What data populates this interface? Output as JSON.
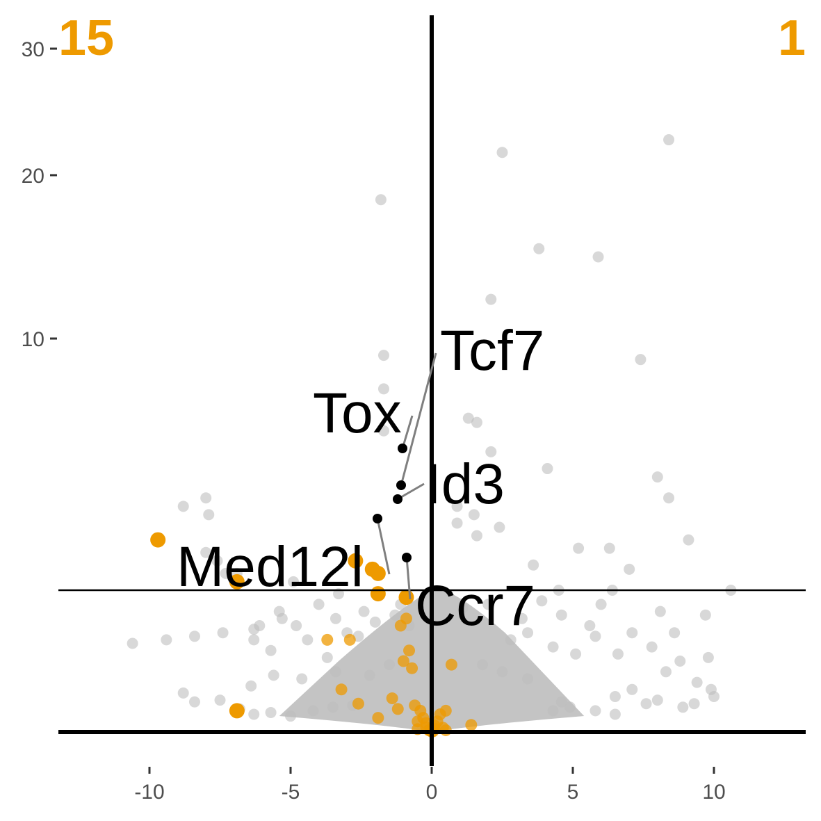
{
  "colors": {
    "background_points": "#bebebe",
    "highlight_points": "#ee9a00",
    "labeled_points": "#000000",
    "count_text": "#ee9a00",
    "axis": "#000000",
    "tick_text": "#4d4d4d",
    "connector": "#7f7f7f"
  },
  "chart_data": {
    "type": "scatter",
    "title": "",
    "xlabel": "",
    "ylabel": "",
    "grid": false,
    "x_ticks": [
      -10,
      -5,
      0,
      5,
      10
    ],
    "x_tick_labels": [
      "-10",
      "-5",
      "0",
      "5",
      "10"
    ],
    "y_ticks": [
      10,
      20,
      30
    ],
    "y_tick_labels": [
      "10",
      "20",
      "30"
    ],
    "xlim": [
      -13.3,
      13.3
    ],
    "y_scale": "transformed (compressed near zero)",
    "threshold_line_y": 4,
    "counts": {
      "down": "15",
      "up": "1"
    },
    "background_points": [
      [
        8.4,
        22.8
      ],
      [
        2.5,
        21.8
      ],
      [
        -1.8,
        18.5
      ],
      [
        3.8,
        15.5
      ],
      [
        5.9,
        15.0
      ],
      [
        2.1,
        12.4
      ],
      [
        7.4,
        9.5
      ],
      [
        -1.7,
        9.6
      ],
      [
        -1.7,
        8.8
      ],
      [
        1.3,
        8.1
      ],
      [
        1.6,
        8.0
      ],
      [
        2.1,
        7.3
      ],
      [
        -1.7,
        7.8
      ],
      [
        4.1,
        6.9
      ],
      [
        8.0,
        6.7
      ],
      [
        8.4,
        6.2
      ],
      [
        -8.0,
        6.2
      ],
      [
        -8.8,
        6.0
      ],
      [
        -7.9,
        5.8
      ],
      [
        0.9,
        6.0
      ],
      [
        1.5,
        5.8
      ],
      [
        0.9,
        5.6
      ],
      [
        2.4,
        5.5
      ],
      [
        1.6,
        5.3
      ],
      [
        9.1,
        5.2
      ],
      [
        5.2,
        5.0
      ],
      [
        6.3,
        5.0
      ],
      [
        -8.0,
        4.9
      ],
      [
        -7.6,
        4.7
      ],
      [
        -7.3,
        4.4
      ],
      [
        -6.9,
        4.4
      ],
      [
        3.6,
        4.6
      ],
      [
        4.5,
        4.0
      ],
      [
        7.0,
        4.5
      ],
      [
        -4.9,
        4.2
      ],
      [
        6.4,
        4.0
      ],
      [
        10.6,
        4.0
      ],
      [
        -3.3,
        3.9
      ],
      [
        4.6,
        3.3
      ],
      [
        -5.4,
        3.4
      ],
      [
        -4.0,
        3.6
      ],
      [
        -10.6,
        2.5
      ],
      [
        -9.4,
        2.6
      ],
      [
        -8.4,
        2.7
      ],
      [
        -7.4,
        2.8
      ],
      [
        -6.3,
        2.6
      ],
      [
        -5.7,
        2.3
      ],
      [
        -4.4,
        2.6
      ],
      [
        -3.7,
        2.1
      ],
      [
        -3.0,
        2.8
      ],
      [
        -6.3,
        2.9
      ],
      [
        -6.1,
        3.0
      ],
      [
        -5.3,
        3.2
      ],
      [
        -4.8,
        3.0
      ],
      [
        -3.4,
        3.2
      ],
      [
        -2.4,
        3.4
      ],
      [
        2.8,
        2.6
      ],
      [
        3.4,
        2.8
      ],
      [
        4.3,
        2.4
      ],
      [
        5.1,
        2.2
      ],
      [
        5.8,
        2.7
      ],
      [
        6.6,
        2.2
      ],
      [
        7.1,
        2.8
      ],
      [
        7.8,
        2.4
      ],
      [
        8.6,
        2.8
      ],
      [
        9.7,
        3.3
      ],
      [
        8.1,
        3.4
      ],
      [
        6.0,
        3.6
      ],
      [
        5.6,
        3.0
      ],
      [
        3.9,
        3.7
      ],
      [
        3.2,
        3.2
      ],
      [
        2.0,
        3.6
      ],
      [
        1.1,
        3.5
      ],
      [
        -1.1,
        3.6
      ],
      [
        -1.3,
        3.3
      ],
      [
        -0.8,
        3.0
      ],
      [
        -2.0,
        3.1
      ],
      [
        -2.6,
        2.7
      ],
      [
        -8.8,
        1.1
      ],
      [
        -8.4,
        0.85
      ],
      [
        -7.5,
        0.9
      ],
      [
        -6.8,
        0.65
      ],
      [
        -6.3,
        0.5
      ],
      [
        -5.7,
        0.55
      ],
      [
        -5.0,
        0.45
      ],
      [
        -4.2,
        0.6
      ],
      [
        -3.5,
        0.7
      ],
      [
        -2.8,
        0.75
      ],
      [
        6.5,
        1.0
      ],
      [
        7.1,
        1.2
      ],
      [
        7.6,
        0.8
      ],
      [
        8.0,
        0.9
      ],
      [
        8.9,
        0.7
      ],
      [
        9.3,
        0.8
      ],
      [
        9.9,
        1.2
      ],
      [
        10.0,
        1.0
      ],
      [
        6.5,
        0.5
      ],
      [
        5.8,
        0.6
      ],
      [
        4.9,
        0.7
      ],
      [
        4.6,
        0.85
      ],
      [
        4.3,
        0.6
      ],
      [
        3.4,
        1.5
      ],
      [
        2.5,
        1.7
      ],
      [
        1.8,
        1.9
      ],
      [
        -1.5,
        1.9
      ],
      [
        -2.2,
        1.6
      ],
      [
        -3.4,
        1.7
      ],
      [
        -4.6,
        1.5
      ],
      [
        -5.6,
        1.6
      ],
      [
        -6.4,
        1.3
      ],
      [
        9.4,
        1.4
      ],
      [
        8.3,
        1.7
      ],
      [
        9.8,
        2.1
      ],
      [
        8.8,
        2.0
      ]
    ],
    "highlight_points": [
      [
        -9.7,
        5.2
      ],
      [
        -6.9,
        4.2
      ],
      [
        -2.7,
        4.7
      ],
      [
        -2.1,
        4.5
      ],
      [
        -1.9,
        4.4
      ],
      [
        -1.9,
        3.9
      ],
      [
        -0.9,
        3.8
      ],
      [
        -1.1,
        3.0
      ],
      [
        -0.9,
        3.2
      ],
      [
        -2.9,
        2.6
      ],
      [
        -3.7,
        2.6
      ],
      [
        -0.8,
        2.3
      ],
      [
        -1.0,
        2.0
      ],
      [
        -0.7,
        1.8
      ],
      [
        0.7,
        1.9
      ],
      [
        -3.2,
        1.2
      ],
      [
        -2.6,
        0.8
      ],
      [
        -1.4,
        0.95
      ],
      [
        -1.2,
        0.65
      ],
      [
        -0.6,
        0.75
      ],
      [
        0.5,
        0.6
      ],
      [
        0.3,
        0.5
      ],
      [
        -1.9,
        0.4
      ],
      [
        -6.9,
        0.6
      ],
      [
        -0.4,
        0.6
      ],
      [
        -0.5,
        0.3
      ],
      [
        -0.2,
        0.25
      ],
      [
        0.1,
        0.18
      ],
      [
        0.4,
        0.12
      ],
      [
        1.4,
        0.2
      ],
      [
        -0.5,
        0.08
      ],
      [
        0.5,
        0.05
      ],
      [
        -0.1,
        0.05
      ],
      [
        0.05,
        0.02
      ],
      [
        0.0,
        0.01
      ],
      [
        -0.05,
        0.04
      ],
      [
        0.1,
        0.09
      ],
      [
        -0.2,
        0.13
      ],
      [
        0.2,
        0.3
      ],
      [
        -0.3,
        0.4
      ]
    ],
    "labeled_genes": [
      {
        "gene": "Tcf7",
        "x": -1.05,
        "y": 4.65
      },
      {
        "gene": "Tox",
        "x": -1.0,
        "y": 5.5
      },
      {
        "gene": "Id3",
        "x": -1.2,
        "y": 4.4
      },
      {
        "gene": "Med12l",
        "x": -1.9,
        "y": 3.9
      },
      {
        "gene": "Ccr7",
        "x": -0.9,
        "y": 2.6
      }
    ]
  }
}
